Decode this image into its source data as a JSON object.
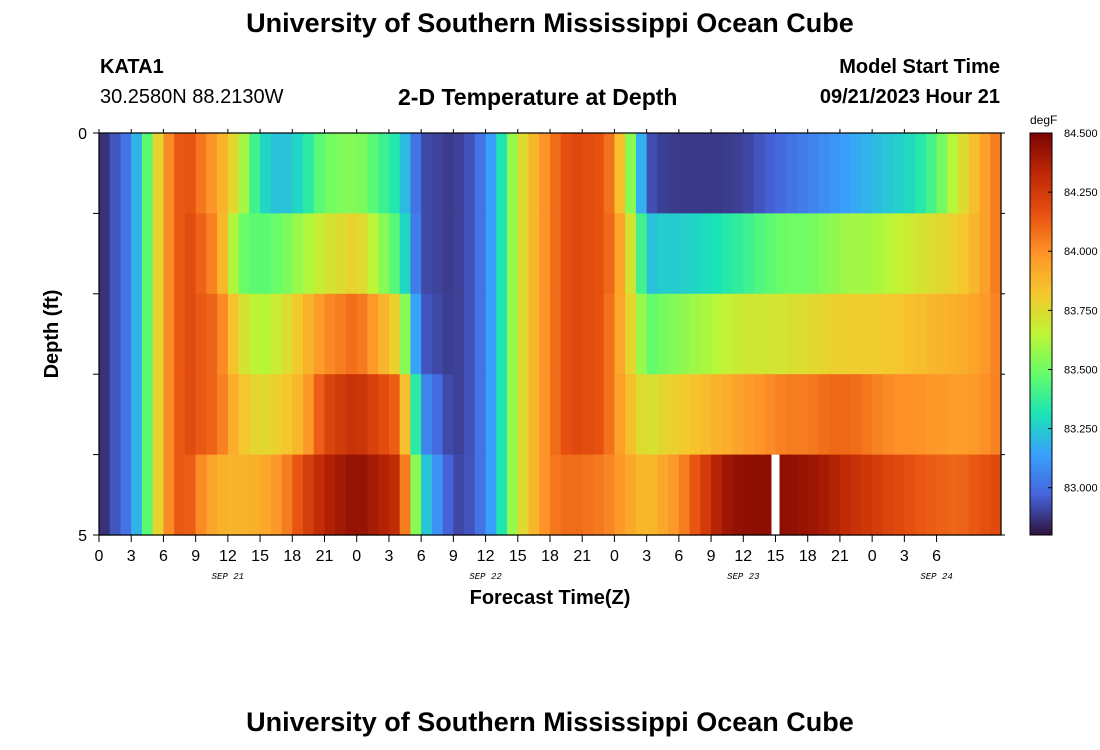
{
  "header": {
    "title": "University of Southern Mississippi Ocean Cube",
    "station": "KATA1",
    "coordinates": "30.2580N  88.2130W",
    "subtitle": "2-D Temperature at Depth",
    "model_start_label": "Model Start Time",
    "model_start_value": "09/21/2023 Hour 21"
  },
  "footer": {
    "title": "University of Southern Mississippi Ocean Cube"
  },
  "chart_data": {
    "type": "heatmap",
    "title": "2-D Temperature at Depth",
    "xlabel": "Forecast Time(Z)",
    "ylabel": "Depth (ft)",
    "x_hours": [
      0,
      84
    ],
    "x_tick_labels": [
      "0",
      "3",
      "6",
      "9",
      "12",
      "15",
      "18",
      "21",
      "0",
      "3",
      "6",
      "9",
      "12",
      "15",
      "18",
      "21",
      "0",
      "3",
      "6",
      "9",
      "12",
      "15",
      "18",
      "21",
      "0",
      "3",
      "6"
    ],
    "date_labels": [
      {
        "label": "SEP 21",
        "hour": 12
      },
      {
        "label": "SEP 22",
        "hour": 36
      },
      {
        "label": "SEP 23",
        "hour": 60
      },
      {
        "label": "SEP 24",
        "hour": 78
      }
    ],
    "y_range": [
      0,
      5
    ],
    "y_tick_labels": [
      "0",
      "5"
    ],
    "depth_bands": [
      "0-1 ft",
      "1-2 ft",
      "2-3 ft",
      "3-4 ft",
      "4-5 ft"
    ],
    "colorbar": {
      "unit": "degF",
      "min": 82.8,
      "max": 84.5,
      "tick_labels": [
        "84.500",
        "84.250",
        "84.000",
        "83.750",
        "83.500",
        "83.250",
        "83.000"
      ]
    },
    "gap_hour": 63.0,
    "series": [
      {
        "name": "0-1 ft",
        "hours": [
          0,
          3,
          5,
          6,
          8,
          9,
          11,
          13,
          15,
          17,
          19,
          21,
          24,
          28,
          30,
          33,
          35,
          37,
          39,
          42,
          44,
          47,
          48,
          50,
          51,
          52,
          54,
          56,
          58,
          60,
          62,
          64,
          66,
          68,
          70,
          72,
          74,
          76,
          78,
          80,
          82,
          84
        ],
        "values": [
          82.83,
          83.05,
          83.6,
          83.95,
          84.2,
          84.1,
          83.95,
          83.7,
          83.3,
          83.2,
          83.3,
          83.5,
          83.55,
          83.3,
          82.92,
          82.88,
          82.95,
          83.2,
          83.7,
          84.05,
          84.2,
          84.15,
          84.0,
          83.4,
          82.95,
          82.9,
          82.88,
          82.88,
          82.88,
          82.9,
          82.95,
          83.0,
          83.05,
          83.1,
          83.15,
          83.2,
          83.25,
          83.3,
          83.45,
          83.7,
          83.9,
          84.1
        ]
      },
      {
        "name": "1-2 ft",
        "hours": [
          0,
          3,
          5,
          6,
          8,
          9,
          11,
          13,
          15,
          17,
          19,
          21,
          24,
          28,
          30,
          33,
          35,
          37,
          39,
          42,
          44,
          47,
          48,
          50,
          51,
          52,
          54,
          56,
          58,
          60,
          62,
          64,
          66,
          68,
          70,
          72,
          74,
          76,
          78,
          80,
          82,
          84
        ],
        "values": [
          82.83,
          83.05,
          83.6,
          83.95,
          84.2,
          84.15,
          84.0,
          83.5,
          83.45,
          83.5,
          83.6,
          83.7,
          83.8,
          83.4,
          82.92,
          82.88,
          82.95,
          83.2,
          83.7,
          84.05,
          84.2,
          84.15,
          84.05,
          83.6,
          83.2,
          83.25,
          83.25,
          83.28,
          83.32,
          83.38,
          83.45,
          83.5,
          83.5,
          83.55,
          83.6,
          83.6,
          83.65,
          83.7,
          83.75,
          83.8,
          83.9,
          84.1
        ]
      },
      {
        "name": "2-3 ft",
        "hours": [
          0,
          3,
          5,
          6,
          8,
          9,
          11,
          13,
          15,
          17,
          19,
          21,
          24,
          28,
          30,
          33,
          35,
          37,
          39,
          42,
          44,
          47,
          48,
          50,
          51,
          52,
          54,
          56,
          58,
          60,
          62,
          64,
          66,
          68,
          70,
          72,
          74,
          76,
          78,
          80,
          82,
          84
        ],
        "values": [
          82.83,
          83.05,
          83.6,
          83.95,
          84.2,
          84.15,
          84.1,
          83.75,
          83.62,
          83.7,
          83.85,
          84.0,
          84.1,
          83.75,
          82.95,
          82.88,
          82.95,
          83.2,
          83.7,
          84.05,
          84.2,
          84.15,
          84.0,
          83.7,
          83.45,
          83.5,
          83.55,
          83.6,
          83.65,
          83.7,
          83.7,
          83.72,
          83.75,
          83.78,
          83.8,
          83.8,
          83.82,
          83.85,
          83.88,
          83.9,
          83.95,
          84.05
        ]
      },
      {
        "name": "3-4 ft",
        "hours": [
          0,
          3,
          5,
          6,
          8,
          9,
          11,
          13,
          15,
          17,
          19,
          21,
          24,
          28,
          30,
          33,
          35,
          37,
          39,
          42,
          44,
          47,
          48,
          50,
          51,
          52,
          54,
          56,
          58,
          60,
          62,
          64,
          66,
          68,
          70,
          72,
          74,
          76,
          78,
          80,
          82,
          84
        ],
        "values": [
          82.83,
          83.05,
          83.6,
          83.95,
          84.2,
          84.15,
          84.1,
          83.85,
          83.75,
          83.8,
          83.9,
          84.2,
          84.3,
          84.1,
          83.1,
          82.88,
          82.95,
          83.2,
          83.7,
          84.05,
          84.2,
          84.15,
          84.0,
          83.8,
          83.7,
          83.75,
          83.8,
          83.85,
          83.9,
          83.95,
          84.0,
          84.05,
          84.05,
          84.1,
          84.1,
          84.05,
          84.0,
          84.0,
          83.98,
          83.95,
          83.98,
          84.05
        ]
      },
      {
        "name": "4-5 ft",
        "hours": [
          0,
          3,
          5,
          6,
          8,
          9,
          11,
          13,
          15,
          17,
          19,
          21,
          24,
          28,
          30,
          33,
          35,
          37,
          39,
          42,
          44,
          47,
          48,
          50,
          51,
          52,
          54,
          56,
          58,
          60,
          62,
          64,
          66,
          68,
          70,
          72,
          74,
          76,
          78,
          80,
          82,
          84
        ],
        "values": [
          82.83,
          83.05,
          83.6,
          83.95,
          84.2,
          84.05,
          83.9,
          83.88,
          83.9,
          84.0,
          84.2,
          84.35,
          84.45,
          84.3,
          83.3,
          82.9,
          82.95,
          83.2,
          83.7,
          84.05,
          84.1,
          84.05,
          84.0,
          83.9,
          83.85,
          83.9,
          84.0,
          84.2,
          84.4,
          84.45,
          84.45,
          84.45,
          84.42,
          84.38,
          84.3,
          84.25,
          84.2,
          84.15,
          84.12,
          84.1,
          84.15,
          84.2
        ]
      }
    ]
  }
}
